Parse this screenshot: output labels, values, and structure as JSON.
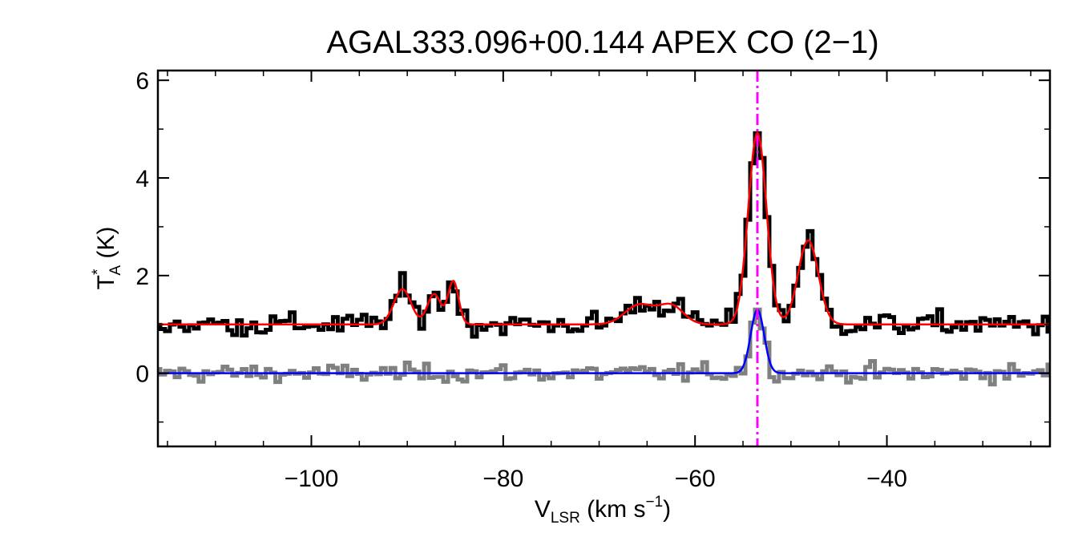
{
  "chart_data": {
    "type": "line",
    "title": "AGAL333.096+00.144  APEX CO (2−1)",
    "xlabel": {
      "main": "V",
      "sub": "LSR",
      "rest": " (km s",
      "sup": "−1",
      "close": ")"
    },
    "ylabel": {
      "main": "T",
      "sup": "*",
      "sub": "A",
      "rest": " (K)"
    },
    "xlim": [
      -116,
      -23
    ],
    "ylim": [
      -1.5,
      6.2
    ],
    "xticks": [
      -100,
      -80,
      -60,
      -40
    ],
    "xtick_labels": [
      "−100",
      "−80",
      "−60",
      "−40"
    ],
    "yticks": [
      0,
      2,
      4,
      6
    ],
    "ytick_labels": [
      "0",
      "2",
      "4",
      "6"
    ],
    "x_minor_step": 5,
    "y_minor_step": 1,
    "channel_width": 0.5,
    "vline": {
      "x": -53.5,
      "color": "#ff00ff",
      "style": "dash-dot"
    },
    "grid": false,
    "series": [
      {
        "role": "spectrum",
        "style": "histogram",
        "color": "#000000",
        "baseline": 1.0,
        "noise_sigma": 0.12,
        "components": [
          {
            "center": -90.5,
            "amp": 0.72,
            "sigma": 0.9
          },
          {
            "center": -87.2,
            "amp": 0.62,
            "sigma": 0.7
          },
          {
            "center": -85.2,
            "amp": 0.88,
            "sigma": 0.55
          },
          {
            "center": -65.8,
            "amp": 0.4,
            "sigma": 1.5
          },
          {
            "center": -62.5,
            "amp": 0.38,
            "sigma": 1.3
          },
          {
            "center": -53.5,
            "amp": 3.92,
            "sigma": 0.95
          },
          {
            "center": -48.2,
            "amp": 1.72,
            "sigma": 1.05
          }
        ]
      },
      {
        "role": "fit",
        "style": "line",
        "color": "#ff0000",
        "baseline": 1.0,
        "components_from": 0
      },
      {
        "role": "spectrum",
        "style": "histogram",
        "color": "#808080",
        "baseline": 0.0,
        "noise_sigma": 0.09,
        "components": [
          {
            "center": -53.5,
            "amp": 1.3,
            "sigma": 0.7
          }
        ]
      },
      {
        "role": "fit",
        "style": "line",
        "color": "#0000ff",
        "baseline": 0.0,
        "components_from": 2
      }
    ]
  }
}
